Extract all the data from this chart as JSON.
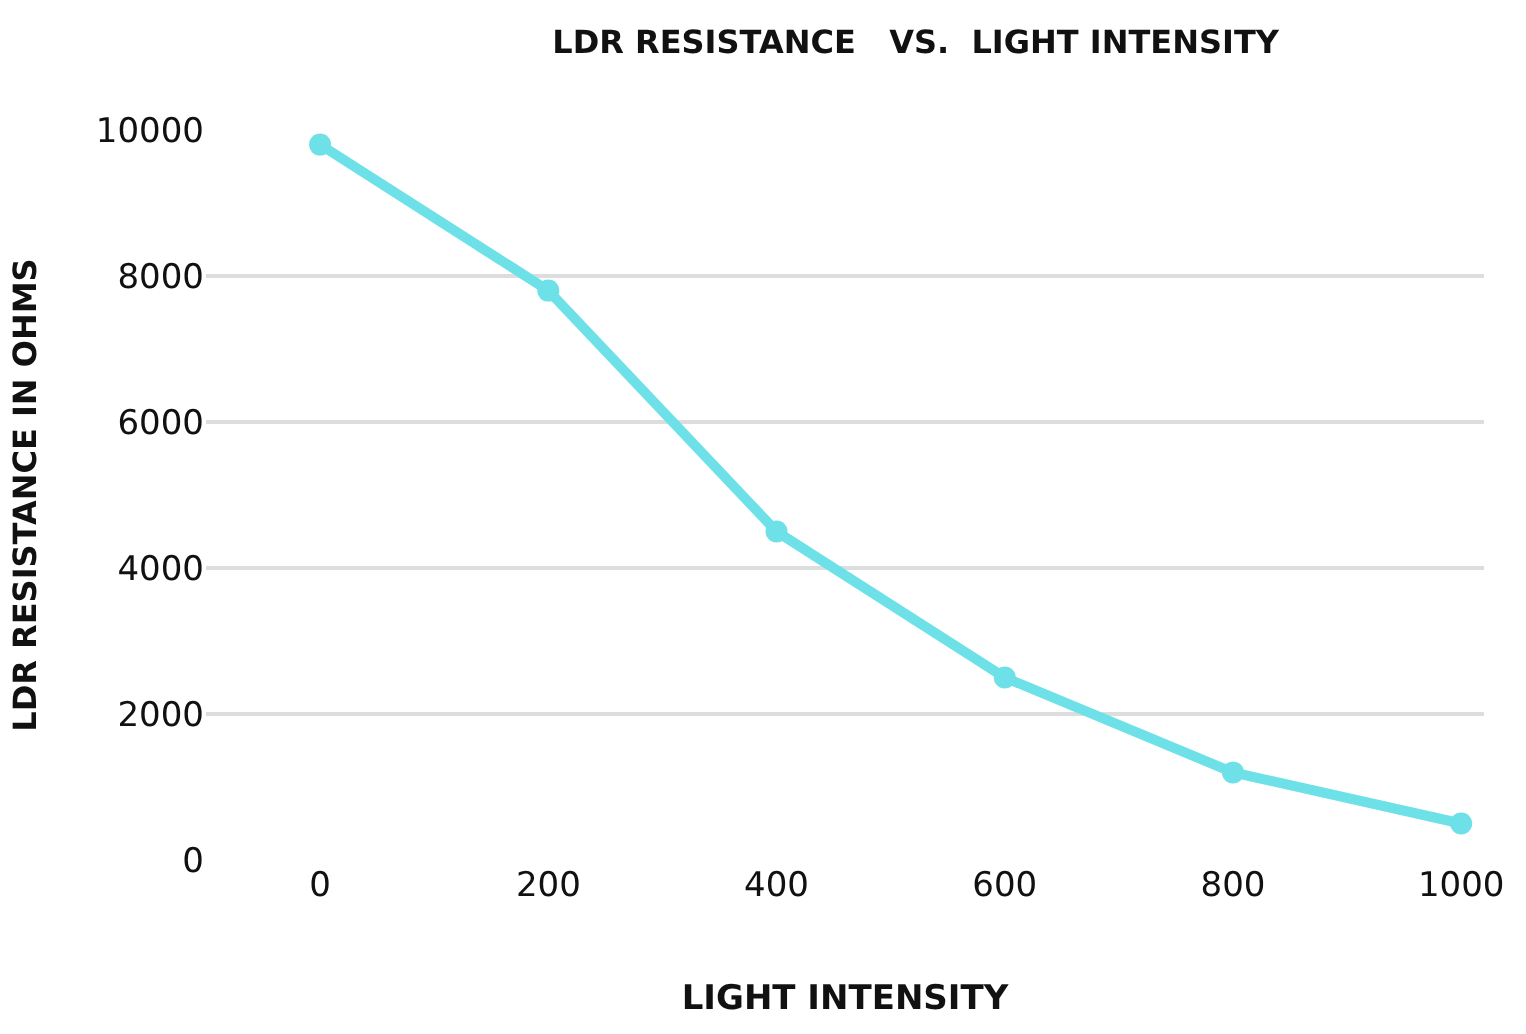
{
  "chart_data": {
    "type": "line",
    "title": "LDR RESISTANCE   VS.  LIGHT INTENSITY",
    "xlabel": "LIGHT INTENSITY",
    "ylabel": "LDR RESISTANCE IN OHMS",
    "x": [
      0,
      200,
      400,
      600,
      800,
      1000
    ],
    "series": [
      {
        "color": "#6ee1e8",
        "values": [
          9800,
          7800,
          4500,
          2500,
          1200,
          500
        ]
      }
    ],
    "xlim": [
      -100,
      1020
    ],
    "xticks": [
      0,
      200,
      400,
      600,
      800,
      1000
    ],
    "ylim": [
      0,
      10000
    ],
    "yticks": [
      0,
      2000,
      4000,
      6000,
      8000,
      10000
    ],
    "grid": "y",
    "marker": "circle",
    "line_style": "solid",
    "legend": false
  }
}
